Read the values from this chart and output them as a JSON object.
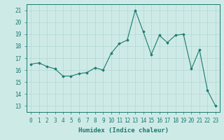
{
  "x": [
    0,
    1,
    2,
    3,
    4,
    5,
    6,
    7,
    8,
    9,
    10,
    11,
    12,
    13,
    14,
    15,
    16,
    17,
    18,
    19,
    20,
    21,
    22,
    23
  ],
  "y": [
    16.5,
    16.6,
    16.3,
    16.1,
    15.5,
    15.5,
    15.7,
    15.8,
    16.2,
    16.0,
    17.4,
    18.2,
    18.5,
    21.0,
    19.2,
    17.3,
    18.9,
    18.3,
    18.9,
    19.0,
    16.1,
    17.7,
    14.3,
    13.0
  ],
  "line_color": "#1a7a6e",
  "marker": "D",
  "marker_size": 1.8,
  "bg_color": "#ceeae7",
  "grid_color": "#b0d8d4",
  "grid_major_color": "#a8ccc8",
  "xlabel": "Humidex (Indice chaleur)",
  "ylim": [
    12.5,
    21.5
  ],
  "yticks": [
    13,
    14,
    15,
    16,
    17,
    18,
    19,
    20,
    21
  ],
  "xticks": [
    0,
    1,
    2,
    3,
    4,
    5,
    6,
    7,
    8,
    9,
    10,
    11,
    12,
    13,
    14,
    15,
    16,
    17,
    18,
    19,
    20,
    21,
    22,
    23
  ],
  "xlabel_fontsize": 6.5,
  "tick_fontsize": 5.5,
  "tick_color": "#1a7a6e",
  "label_color": "#1a7a6e",
  "spine_color": "#1a7a6e"
}
